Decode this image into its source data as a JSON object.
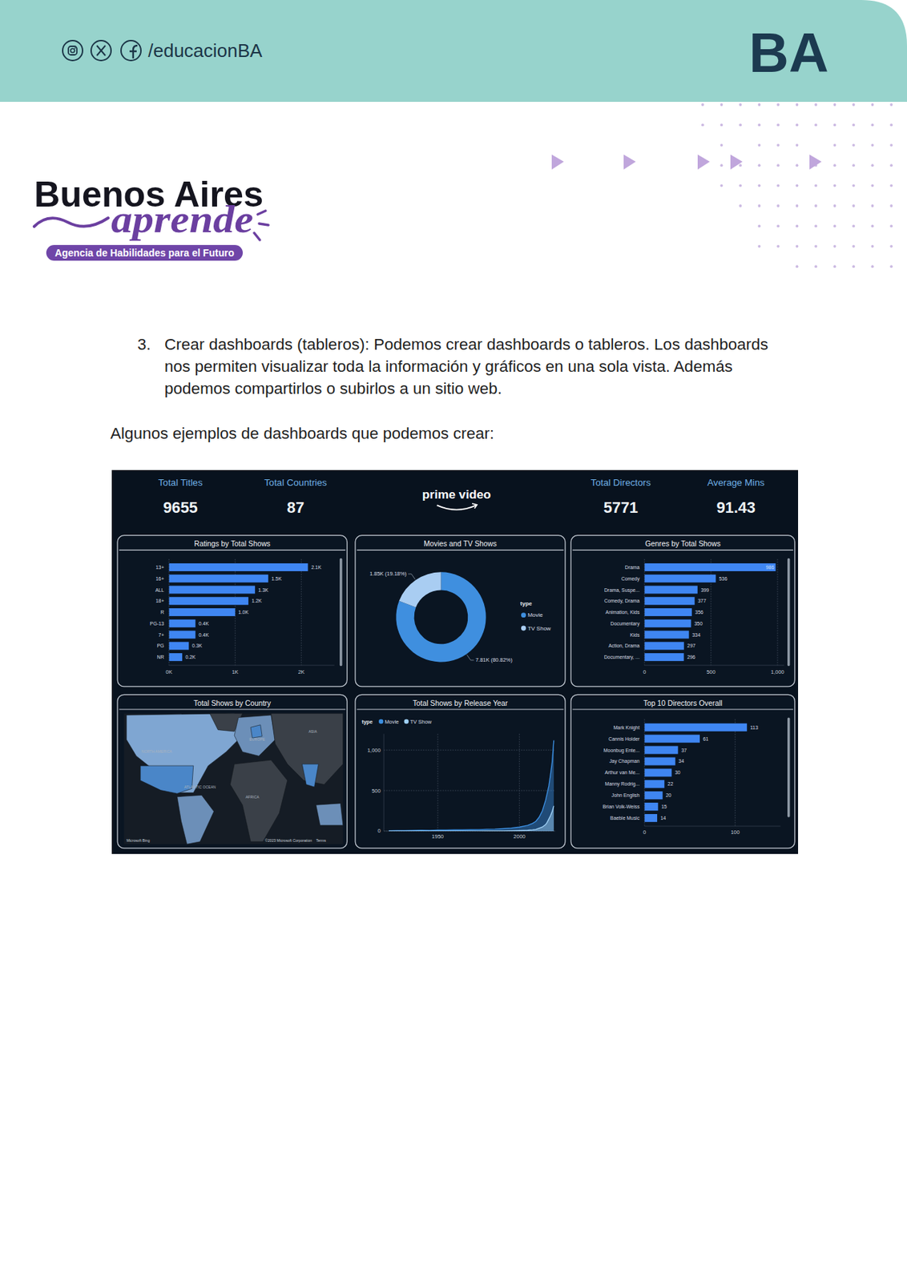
{
  "header": {
    "social_handle": "/educacionBA",
    "logo": "BA"
  },
  "brand": {
    "name": "Buenos Aires",
    "script": "aprende",
    "tagline": "Agencia de Habilidades para el Futuro"
  },
  "body": {
    "number": "3.",
    "lines": [
      "Crear dashboards (tableros): Podemos crear dashboards o tableros. Los dashboards",
      "nos permiten visualizar toda la información y gráficos en una sola vista. Además",
      "podemos compartirlos o subirlos a un sitio web."
    ],
    "intro": "Algunos ejemplos de dashboards que podemos crear:"
  },
  "dashboard": {
    "logo": "prime video",
    "kpis": [
      {
        "label": "Total Titles",
        "value": 9655
      },
      {
        "label": "Total Countries",
        "value": 87
      },
      {
        "label": "Total Directors",
        "value": 5771
      },
      {
        "label": "Average Mins",
        "value": 91.43
      }
    ],
    "map": {
      "title": "Total Shows by Country",
      "labels": [
        "NORTH AMERICA",
        "EUROPE",
        "ASIA",
        "AFRICA",
        "ATLANTIC OCEAN"
      ],
      "credits": [
        "Microsoft Bing",
        "©2023 Microsoft Corporation",
        "Terms"
      ]
    }
  },
  "chart_data": [
    {
      "type": "bar",
      "orientation": "horizontal",
      "title": "Ratings by Total Shows",
      "categories": [
        "13+",
        "16+",
        "ALL",
        "18+",
        "R",
        "PG-13",
        "7+",
        "PG",
        "NR"
      ],
      "values": [
        2100,
        1500,
        1300,
        1200,
        1000,
        400,
        400,
        300,
        200
      ],
      "value_labels": [
        "2.1K",
        "1.5K",
        "1.3K",
        "1.2K",
        "1.0K",
        "0.4K",
        "0.4K",
        "0.3K",
        "0.2K"
      ],
      "color": "#3f86f2",
      "xlim": [
        0,
        2500
      ],
      "xticks": [
        {
          "value": 0,
          "label": "0K"
        },
        {
          "value": 1000,
          "label": "1K"
        },
        {
          "value": 2000,
          "label": "2K"
        }
      ],
      "grid": true,
      "data_labels": true
    },
    {
      "type": "donut",
      "title": "Movies and TV Shows",
      "categories": [
        "Movie",
        "TV Show"
      ],
      "values": [
        7810,
        1850
      ],
      "value_labels": [
        "7.81K (80.82%)",
        "1.85K (19.18%)"
      ],
      "colors": [
        "#3f8fdf",
        "#a9cdf2"
      ],
      "legend": "right",
      "legend_title": "type",
      "data_labels": true
    },
    {
      "type": "bar",
      "orientation": "horizontal",
      "title": "Genres by Total Shows",
      "categories": [
        "Drama",
        "Comedy",
        "Drama, Suspe...",
        "Comedy, Drama",
        "Animation, Kids",
        "Documentary",
        "Kids",
        "Action, Drama",
        "Documentary, ..."
      ],
      "values": [
        986,
        536,
        399,
        377,
        356,
        350,
        334,
        297,
        296
      ],
      "color": "#3f86f2",
      "xlim": [
        0,
        1050
      ],
      "xticks": [
        0,
        500,
        {
          "value": 1000,
          "label": "1,000"
        }
      ],
      "grid": true,
      "data_labels": true
    },
    {
      "type": "area",
      "title": "Total Shows by Release Year",
      "legend": "top",
      "legend_title": "type",
      "x": [
        1920,
        1925,
        1930,
        1935,
        1940,
        1945,
        1950,
        1955,
        1960,
        1965,
        1970,
        1975,
        1980,
        1985,
        1990,
        1995,
        2000,
        2005,
        2008,
        2010,
        2012,
        2014,
        2016,
        2017,
        2018,
        2019,
        2020,
        2021
      ],
      "series": [
        {
          "name": "Movie",
          "color": "#3b8ee0",
          "values": [
            4,
            5,
            6,
            8,
            10,
            9,
            12,
            12,
            14,
            14,
            16,
            18,
            22,
            24,
            30,
            38,
            50,
            70,
            95,
            120,
            170,
            250,
            380,
            470,
            560,
            700,
            850,
            1120
          ]
        },
        {
          "name": "TV Show",
          "color": "#9fd0f5",
          "values": [
            0,
            0,
            0,
            0,
            0,
            0,
            0,
            0,
            0,
            0,
            0,
            0,
            1,
            1,
            2,
            4,
            6,
            10,
            15,
            20,
            35,
            50,
            80,
            110,
            150,
            190,
            240,
            310
          ]
        }
      ],
      "xlim": [
        1917,
        2022
      ],
      "xticks": [
        1950,
        2000
      ],
      "ylim": [
        0,
        1200
      ],
      "yticks": [
        0,
        500,
        {
          "value": 1000,
          "label": "1,000"
        }
      ],
      "grid": true
    },
    {
      "type": "bar",
      "orientation": "horizontal",
      "title": "Top 10 Directors Overall",
      "categories": [
        "Mark Knight",
        "Cannis Holder",
        "Moonbug Ente...",
        "Jay Chapman",
        "Arthur van Me...",
        "Manny Rodrig...",
        "John English",
        "Brian Volk-Weiss",
        "Baeble Music"
      ],
      "values": [
        113,
        61,
        37,
        34,
        30,
        22,
        20,
        15,
        14
      ],
      "color": "#3f86f2",
      "xlim": [
        0,
        150
      ],
      "xticks": [
        0,
        100
      ],
      "grid": true,
      "data_labels": true
    }
  ]
}
